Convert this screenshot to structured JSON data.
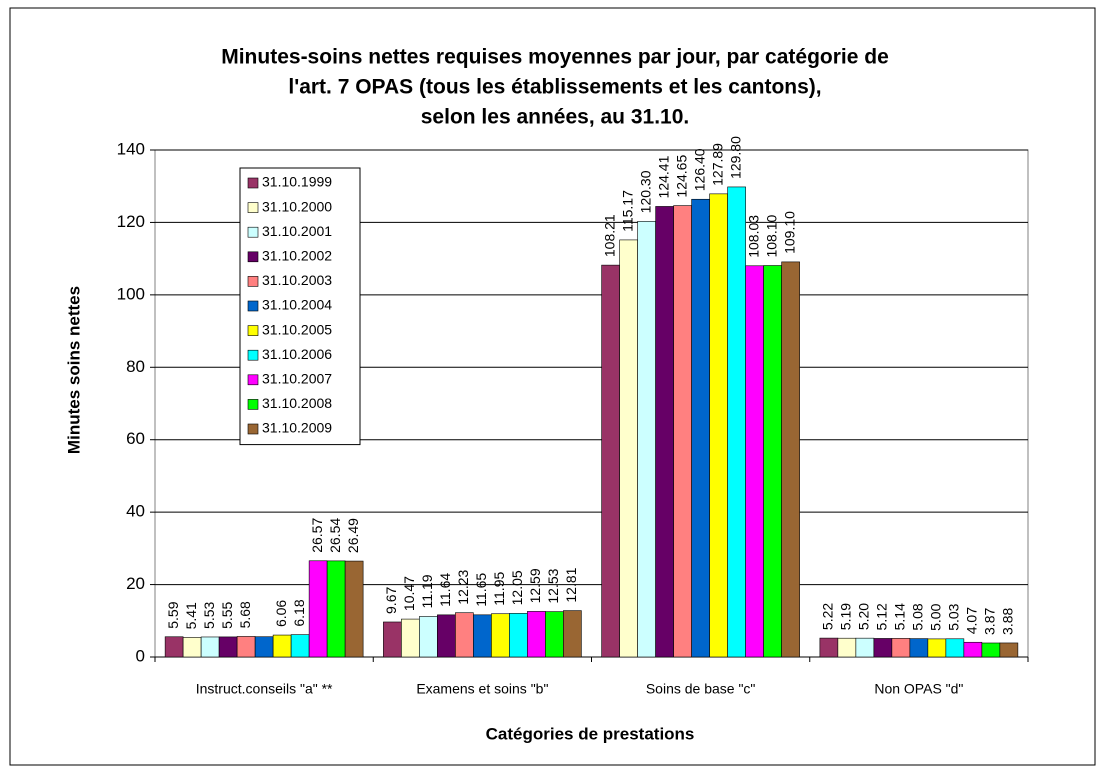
{
  "chart_data": {
    "type": "bar",
    "title": [
      "Minutes-soins nettes requises moyennes par jour, par catégorie de",
      "l'art. 7 OPAS (tous les établissements et les cantons),",
      "selon les années, au 31.10."
    ],
    "y_label": "Minutes soins nettes",
    "x_label": "Catégories de prestations",
    "categories": [
      "Instruct.conseils \"a\" **",
      "Examens et soins \"b\"",
      "Soins de base \"c\"",
      "Non OPAS \"d\""
    ],
    "ylim": [
      0,
      140
    ],
    "yticks": [
      0,
      20,
      40,
      60,
      80,
      100,
      120,
      140
    ],
    "grid": true,
    "legend": "upper left",
    "series": [
      {
        "name": "31.10.1999",
        "color": "#993366",
        "values": [
          5.59,
          9.67,
          108.21,
          5.22
        ],
        "value_labels": [
          "5.59",
          "9.67",
          "108.21",
          "5.22"
        ]
      },
      {
        "name": "31.10.2000",
        "color": "#FFFFCC",
        "values": [
          5.41,
          10.47,
          115.17,
          5.19
        ],
        "value_labels": [
          "5.41",
          "10.47",
          "115.17",
          "5.19"
        ]
      },
      {
        "name": "31.10.2001",
        "color": "#CCFFFF",
        "values": [
          5.53,
          11.19,
          120.3,
          5.2
        ],
        "value_labels": [
          "5.53",
          "11.19",
          "120.30",
          "5.20"
        ]
      },
      {
        "name": "31.10.2002",
        "color": "#660066",
        "values": [
          5.55,
          11.64,
          124.41,
          5.12
        ],
        "value_labels": [
          "5.55",
          "11.64",
          "124.41",
          "5.12"
        ]
      },
      {
        "name": "31.10.2003",
        "color": "#FF8080",
        "values": [
          5.68,
          12.23,
          124.65,
          5.14
        ],
        "value_labels": [
          "5.68",
          "12.23",
          "124.65",
          "5.14"
        ]
      },
      {
        "name": "31.10.2004",
        "color": "#0066CC",
        "values": [
          5.6,
          11.65,
          126.4,
          5.08
        ],
        "value_labels": [
          null,
          "11.65",
          "126.40",
          "5.08"
        ]
      },
      {
        "name": "31.10.2005",
        "color": "#FFFF00",
        "values": [
          6.06,
          11.95,
          127.89,
          5.0
        ],
        "value_labels": [
          "6.06",
          "11.95",
          "127.89",
          "5.00"
        ]
      },
      {
        "name": "31.10.2006",
        "color": "#00FFFF",
        "values": [
          6.18,
          12.05,
          129.8,
          5.03
        ],
        "value_labels": [
          "6.18",
          "12.05",
          "129.80",
          "5.03"
        ]
      },
      {
        "name": "31.10.2007",
        "color": "#FF00FF",
        "values": [
          26.57,
          12.59,
          108.03,
          4.07
        ],
        "value_labels": [
          "26.57",
          "12.59",
          "108.03",
          "4.07"
        ]
      },
      {
        "name": "31.10.2008",
        "color": "#00FF00",
        "values": [
          26.54,
          12.53,
          108.1,
          3.87
        ],
        "value_labels": [
          "26.54",
          "12.53",
          "108.10",
          "3.87"
        ]
      },
      {
        "name": "31.10.2009",
        "color": "#996633",
        "values": [
          26.49,
          12.81,
          109.1,
          3.88
        ],
        "value_labels": [
          "26.49",
          "12.81",
          "109.10",
          "3.88"
        ]
      }
    ]
  }
}
